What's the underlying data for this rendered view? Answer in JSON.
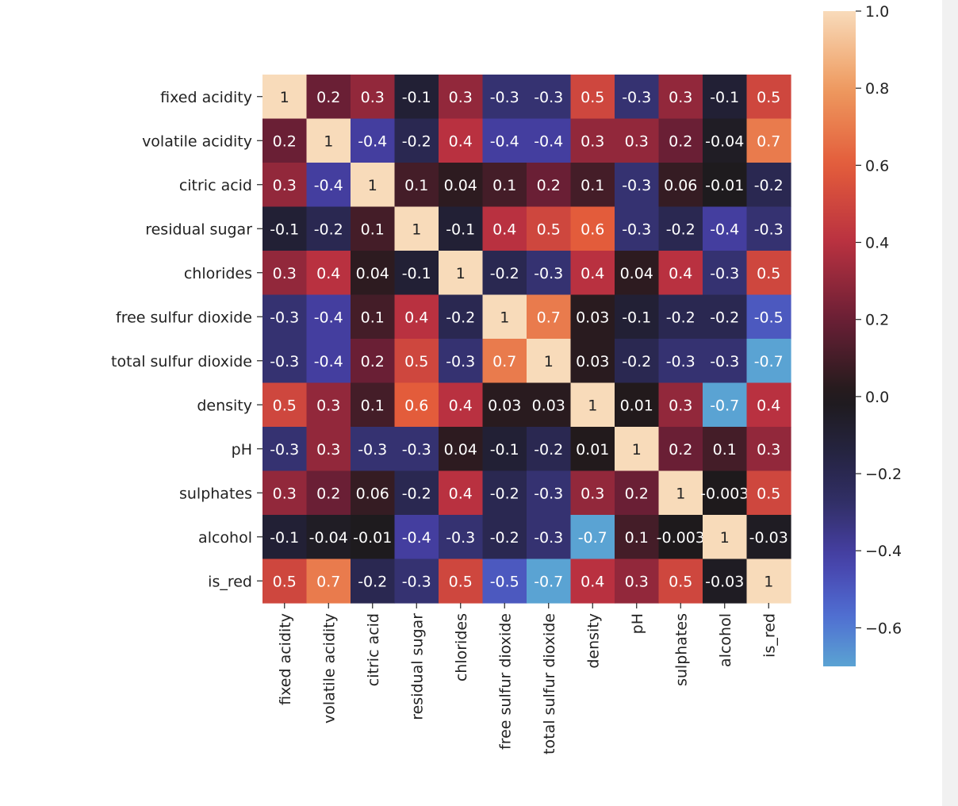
{
  "chart_data": {
    "type": "heatmap",
    "title": "",
    "xlabel": "",
    "ylabel": "",
    "rows": [
      "fixed acidity",
      "volatile acidity",
      "citric acid",
      "residual sugar",
      "chlorides",
      "free sulfur dioxide",
      "total sulfur dioxide",
      "density",
      "pH",
      "sulphates",
      "alcohol",
      "is_red"
    ],
    "columns": [
      "fixed acidity",
      "volatile acidity",
      "citric acid",
      "residual sugar",
      "chlorides",
      "free sulfur dioxide",
      "total sulfur dioxide",
      "density",
      "pH",
      "sulphates",
      "alcohol",
      "is_red"
    ],
    "values": [
      [
        1,
        0.2,
        0.3,
        -0.1,
        0.3,
        -0.3,
        -0.3,
        0.5,
        -0.3,
        0.3,
        -0.1,
        0.5
      ],
      [
        0.2,
        1,
        -0.4,
        -0.2,
        0.4,
        -0.4,
        -0.4,
        0.3,
        0.3,
        0.2,
        -0.04,
        0.7
      ],
      [
        0.3,
        -0.4,
        1,
        0.1,
        0.04,
        0.1,
        0.2,
        0.1,
        -0.3,
        0.06,
        -0.01,
        -0.2
      ],
      [
        -0.1,
        -0.2,
        0.1,
        1,
        -0.1,
        0.4,
        0.5,
        0.6,
        -0.3,
        -0.2,
        -0.4,
        -0.3
      ],
      [
        0.3,
        0.4,
        0.04,
        -0.1,
        1,
        -0.2,
        -0.3,
        0.4,
        0.04,
        0.4,
        -0.3,
        0.5
      ],
      [
        -0.3,
        -0.4,
        0.1,
        0.4,
        -0.2,
        1,
        0.7,
        0.03,
        -0.1,
        -0.2,
        -0.2,
        -0.5
      ],
      [
        -0.3,
        -0.4,
        0.2,
        0.5,
        -0.3,
        0.7,
        1,
        0.03,
        -0.2,
        -0.3,
        -0.3,
        -0.7
      ],
      [
        0.5,
        0.3,
        0.1,
        0.6,
        0.4,
        0.03,
        0.03,
        1,
        0.01,
        0.3,
        -0.7,
        0.4
      ],
      [
        -0.3,
        0.3,
        -0.3,
        -0.3,
        0.04,
        -0.1,
        -0.2,
        0.01,
        1,
        0.2,
        0.1,
        0.3
      ],
      [
        0.3,
        0.2,
        0.06,
        -0.2,
        0.4,
        -0.2,
        -0.3,
        0.3,
        0.2,
        1,
        -0.003,
        0.5
      ],
      [
        -0.1,
        -0.04,
        -0.01,
        -0.4,
        -0.3,
        -0.2,
        -0.3,
        -0.7,
        0.1,
        -0.003,
        1,
        -0.03
      ],
      [
        0.5,
        0.7,
        -0.2,
        -0.3,
        0.5,
        -0.5,
        -0.7,
        0.4,
        0.3,
        0.5,
        -0.03,
        1
      ]
    ],
    "colorbar": {
      "min": -0.7,
      "max": 1.0,
      "center": 0.0,
      "ticks": [
        1.0,
        0.8,
        0.6,
        0.4,
        0.2,
        0.0,
        -0.2,
        -0.4,
        -0.6
      ],
      "tick_labels": [
        "1.0",
        "0.8",
        "0.6",
        "0.4",
        "0.2",
        "0.0",
        "−0.2",
        "−0.4",
        "−0.6"
      ],
      "colormap": "icefire-diverging",
      "color_stops_positive": [
        "#1e1a1b",
        "#6a1f35",
        "#b93140",
        "#e35c3b",
        "#ee9a5f",
        "#f8dbba"
      ],
      "color_stops_negative": [
        "#1e1a1b",
        "#24233f",
        "#322f68",
        "#4741a8",
        "#4f6bd1",
        "#5aa3d3"
      ]
    },
    "annotation_text_color_light": "#ffffff",
    "annotation_text_color_dark": "#222222",
    "grid": false
  }
}
